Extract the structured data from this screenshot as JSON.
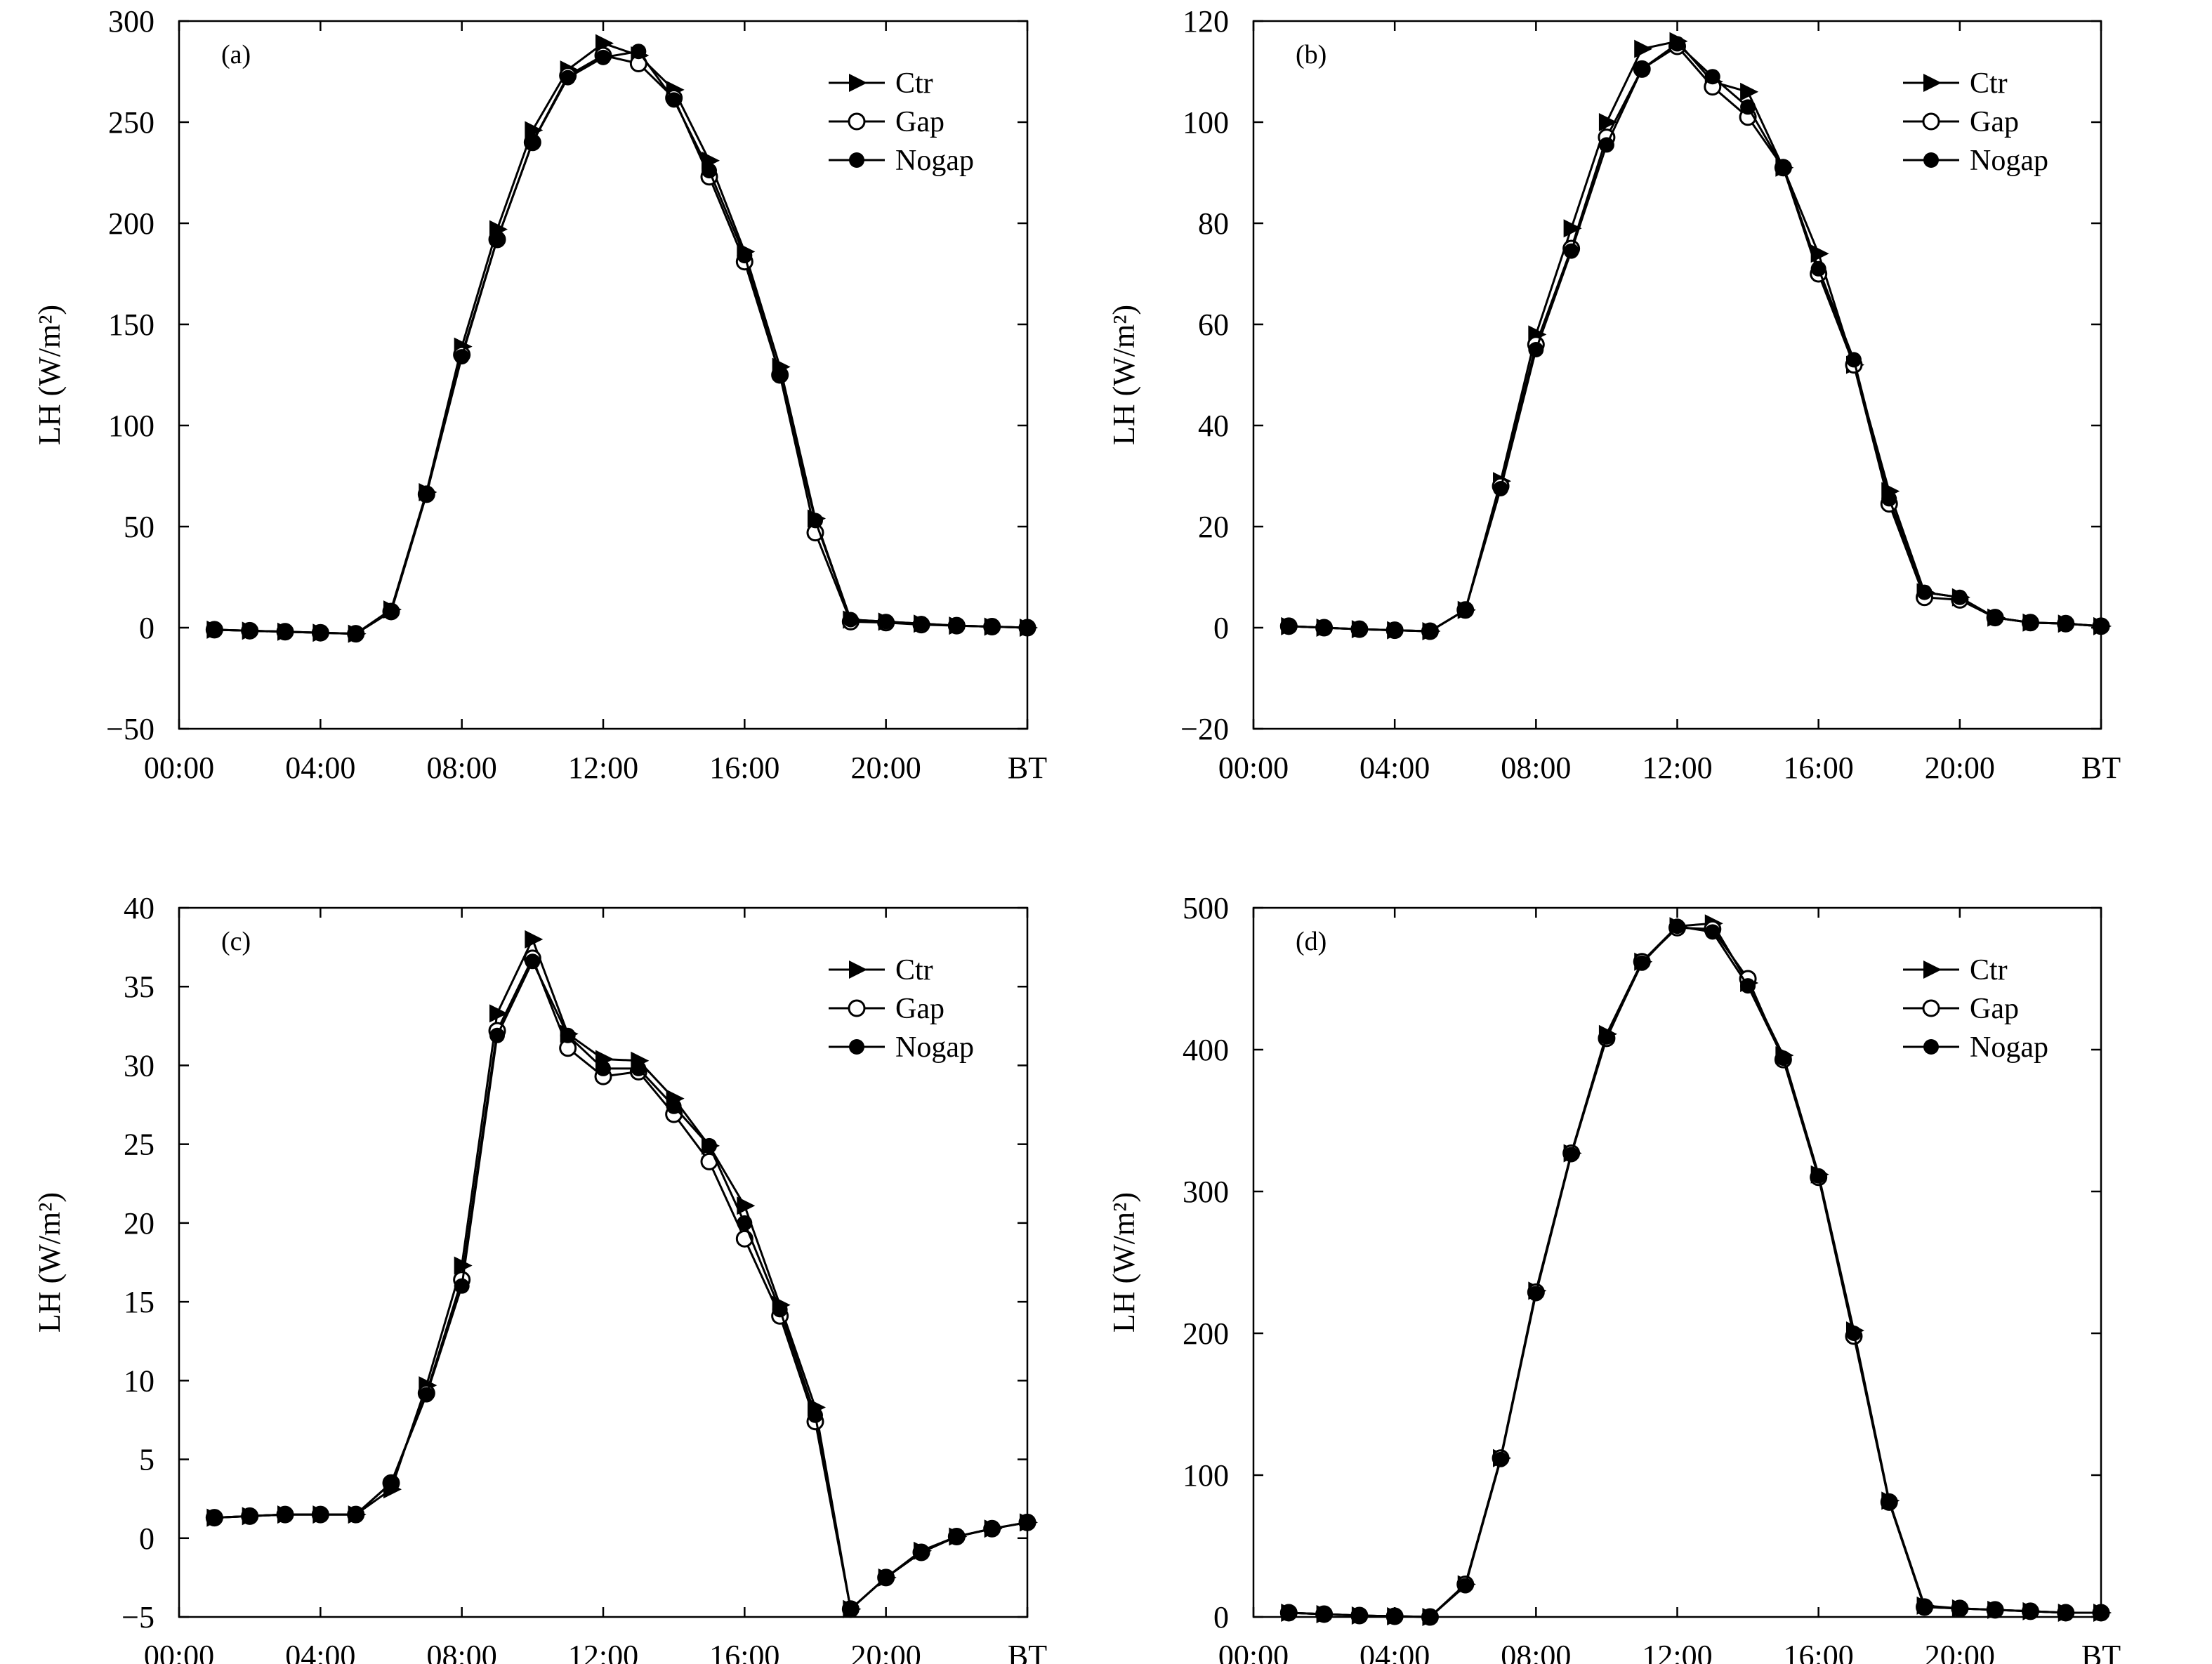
{
  "figure": {
    "ylabel_text": "LH (W/m²)"
  },
  "colors": {
    "line": "#000000",
    "background": "#ffffff",
    "open_marker_fill": "#ffffff"
  },
  "chart_data": [
    {
      "type": "line",
      "panel_label": "(a)",
      "x": [
        1,
        2,
        3,
        4,
        5,
        6,
        7,
        8,
        9,
        10,
        11,
        12,
        13,
        14,
        15,
        16,
        17,
        18,
        19,
        20,
        21,
        22,
        23,
        24
      ],
      "xlim": [
        0,
        24
      ],
      "xticks": [
        0,
        4,
        8,
        12,
        16,
        20,
        24
      ],
      "xtick_labels": [
        "00:00",
        "04:00",
        "08:00",
        "12:00",
        "16:00",
        "20:00",
        "BT"
      ],
      "ylim": [
        -50,
        300
      ],
      "yticks": [
        -50,
        0,
        50,
        100,
        150,
        200,
        250,
        300
      ],
      "ytick_labels": [
        "−50",
        "0",
        "50",
        "100",
        "150",
        "200",
        "250",
        "300"
      ],
      "ylabel": "LH (W/m²)",
      "legend": [
        "Ctr",
        "Gap",
        "Nogap"
      ],
      "series": [
        {
          "name": "Ctr",
          "marker": "triangle-right",
          "values": [
            -1,
            -1.5,
            -2,
            -2.5,
            -3,
            9,
            67,
            139,
            197,
            246,
            276,
            289,
            283,
            266,
            231,
            186,
            129,
            54,
            4,
            3,
            2,
            1,
            0.5,
            0
          ]
        },
        {
          "name": "Gap",
          "marker": "open-circle",
          "values": [
            -1,
            -1.5,
            -2,
            -2.5,
            -3,
            8,
            66,
            135,
            192,
            240,
            273,
            283,
            279,
            262,
            223,
            181,
            125,
            47,
            3,
            2.5,
            1.5,
            1,
            0.5,
            0
          ]
        },
        {
          "name": "Nogap",
          "marker": "filled-circle",
          "values": [
            -1,
            -1.5,
            -2,
            -2.5,
            -3,
            8,
            66,
            134,
            192,
            240,
            272,
            282,
            285,
            261,
            226,
            184,
            125,
            53,
            4,
            3,
            2,
            1,
            0.5,
            0
          ]
        }
      ]
    },
    {
      "type": "line",
      "panel_label": "(b)",
      "x": [
        1,
        2,
        3,
        4,
        5,
        6,
        7,
        8,
        9,
        10,
        11,
        12,
        13,
        14,
        15,
        16,
        17,
        18,
        19,
        20,
        21,
        22,
        23,
        24
      ],
      "xlim": [
        0,
        24
      ],
      "xticks": [
        0,
        4,
        8,
        12,
        16,
        20,
        24
      ],
      "xtick_labels": [
        "00:00",
        "04:00",
        "08:00",
        "12:00",
        "16:00",
        "20:00",
        "BT"
      ],
      "ylim": [
        -20,
        120
      ],
      "yticks": [
        -20,
        0,
        20,
        40,
        60,
        80,
        100,
        120
      ],
      "ytick_labels": [
        "−20",
        "0",
        "20",
        "40",
        "60",
        "80",
        "100",
        "120"
      ],
      "ylabel": "LH (W/m²)",
      "legend": [
        "Ctr",
        "Gap",
        "Nogap"
      ],
      "series": [
        {
          "name": "Ctr",
          "marker": "triangle-right",
          "values": [
            0.3,
            0,
            -0.3,
            -0.5,
            -0.7,
            3.5,
            29,
            58,
            79,
            100,
            114.5,
            116,
            108,
            106,
            91,
            74,
            52,
            27,
            7,
            6,
            2,
            1,
            0.8,
            0.3
          ]
        },
        {
          "name": "Gap",
          "marker": "open-circle",
          "values": [
            0.3,
            0,
            -0.3,
            -0.5,
            -0.7,
            3.5,
            28,
            56,
            75,
            97,
            110.5,
            115,
            107,
            101,
            91,
            70,
            52,
            24.5,
            6,
            5.5,
            2,
            1,
            0.8,
            0.3
          ]
        },
        {
          "name": "Nogap",
          "marker": "filled-circle",
          "values": [
            0.3,
            0,
            -0.3,
            -0.5,
            -0.7,
            3.5,
            27.5,
            55,
            74.5,
            95.5,
            110.5,
            115.5,
            109,
            103,
            91,
            71,
            53,
            25.5,
            7,
            6,
            2,
            1,
            0.8,
            0.3
          ]
        }
      ]
    },
    {
      "type": "line",
      "panel_label": "(c)",
      "x": [
        1,
        2,
        3,
        4,
        5,
        6,
        7,
        8,
        9,
        10,
        11,
        12,
        13,
        14,
        15,
        16,
        17,
        18,
        19,
        20,
        21,
        22,
        23,
        24
      ],
      "xlim": [
        0,
        24
      ],
      "xticks": [
        0,
        4,
        8,
        12,
        16,
        20,
        24
      ],
      "xtick_labels": [
        "00:00",
        "04:00",
        "08:00",
        "12:00",
        "16:00",
        "20:00",
        "BT"
      ],
      "ylim": [
        -5,
        40
      ],
      "yticks": [
        -5,
        0,
        5,
        10,
        15,
        20,
        25,
        30,
        35,
        40
      ],
      "ytick_labels": [
        "−5",
        "0",
        "5",
        "10",
        "15",
        "20",
        "25",
        "30",
        "35",
        "40"
      ],
      "ylabel": "LH (W/m²)",
      "legend": [
        "Ctr",
        "Gap",
        "Nogap"
      ],
      "series": [
        {
          "name": "Ctr",
          "marker": "triangle-right",
          "values": [
            1.3,
            1.4,
            1.5,
            1.5,
            1.5,
            3.1,
            9.7,
            17.3,
            33.3,
            38,
            32,
            30.4,
            30.3,
            27.9,
            24.9,
            21.1,
            14.8,
            8.3,
            -4.5,
            -2.5,
            -0.8,
            0.1,
            0.6,
            1
          ]
        },
        {
          "name": "Gap",
          "marker": "open-circle",
          "values": [
            1.3,
            1.4,
            1.5,
            1.5,
            1.5,
            3.5,
            9.2,
            16.4,
            32.2,
            36.8,
            31.1,
            29.3,
            29.6,
            26.9,
            23.9,
            19,
            14.1,
            7.4,
            -4.5,
            -2.5,
            -0.9,
            0.1,
            0.6,
            1
          ]
        },
        {
          "name": "Nogap",
          "marker": "filled-circle",
          "values": [
            1.3,
            1.4,
            1.5,
            1.5,
            1.5,
            3.5,
            9.1,
            16,
            31.9,
            36.6,
            31.9,
            29.8,
            29.8,
            27.4,
            24.9,
            20,
            14.5,
            7.8,
            -4.5,
            -2.5,
            -0.9,
            0.1,
            0.6,
            1
          ]
        }
      ]
    },
    {
      "type": "line",
      "panel_label": "(d)",
      "x": [
        1,
        2,
        3,
        4,
        5,
        6,
        7,
        8,
        9,
        10,
        11,
        12,
        13,
        14,
        15,
        16,
        17,
        18,
        19,
        20,
        21,
        22,
        23,
        24
      ],
      "xlim": [
        0,
        24
      ],
      "xticks": [
        0,
        4,
        8,
        12,
        16,
        20,
        24
      ],
      "xtick_labels": [
        "00:00",
        "04:00",
        "08:00",
        "12:00",
        "16:00",
        "20:00",
        "BT"
      ],
      "ylim": [
        0,
        500
      ],
      "yticks": [
        0,
        100,
        200,
        300,
        400,
        500
      ],
      "ytick_labels": [
        "0",
        "100",
        "200",
        "300",
        "400",
        "500"
      ],
      "ylabel": "LH (W/m²)",
      "legend": [
        "Ctr",
        "Gap",
        "Nogap"
      ],
      "series": [
        {
          "name": "Ctr",
          "marker": "triangle-right",
          "values": [
            3,
            2,
            1,
            0.5,
            0,
            23,
            112,
            230,
            327,
            411,
            462,
            487,
            489,
            447,
            396,
            312,
            202,
            82,
            8,
            6,
            5,
            4,
            3,
            3
          ]
        },
        {
          "name": "Gap",
          "marker": "open-circle",
          "values": [
            3,
            2,
            1,
            0.5,
            0,
            23,
            112,
            229,
            327,
            408,
            462,
            486,
            485,
            450,
            393,
            310,
            198,
            81,
            7,
            6,
            5,
            4,
            3,
            3
          ]
        },
        {
          "name": "Nogap",
          "marker": "filled-circle",
          "values": [
            3,
            2,
            1,
            0.5,
            0,
            22,
            111,
            228,
            326,
            409,
            461,
            487,
            483,
            445,
            394,
            311,
            200,
            81,
            7,
            6,
            5,
            4,
            3,
            3
          ]
        }
      ]
    }
  ]
}
